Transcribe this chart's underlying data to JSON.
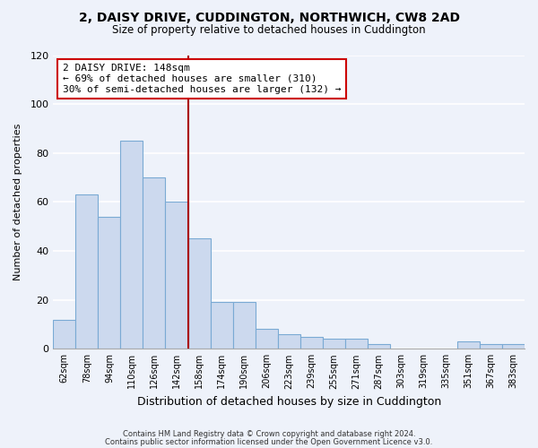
{
  "title": "2, DAISY DRIVE, CUDDINGTON, NORTHWICH, CW8 2AD",
  "subtitle": "Size of property relative to detached houses in Cuddington",
  "xlabel": "Distribution of detached houses by size in Cuddington",
  "ylabel": "Number of detached properties",
  "bar_labels": [
    "62sqm",
    "78sqm",
    "94sqm",
    "110sqm",
    "126sqm",
    "142sqm",
    "158sqm",
    "174sqm",
    "190sqm",
    "206sqm",
    "223sqm",
    "239sqm",
    "255sqm",
    "271sqm",
    "287sqm",
    "303sqm",
    "319sqm",
    "335sqm",
    "351sqm",
    "367sqm",
    "383sqm"
  ],
  "bar_values": [
    12,
    63,
    54,
    85,
    70,
    60,
    45,
    19,
    19,
    8,
    6,
    5,
    4,
    4,
    2,
    0,
    0,
    0,
    3,
    2,
    2
  ],
  "bar_color": "#ccd9ee",
  "bar_edge_color": "#7aaad4",
  "vline_x": 5.5,
  "vline_color": "#aa0000",
  "annotation_title": "2 DAISY DRIVE: 148sqm",
  "annotation_line1": "← 69% of detached houses are smaller (310)",
  "annotation_line2": "30% of semi-detached houses are larger (132) →",
  "annotation_box_facecolor": "#ffffff",
  "annotation_box_edgecolor": "#cc0000",
  "ylim": [
    0,
    120
  ],
  "yticks": [
    0,
    20,
    40,
    60,
    80,
    100,
    120
  ],
  "footer1": "Contains HM Land Registry data © Crown copyright and database right 2024.",
  "footer2": "Contains public sector information licensed under the Open Government Licence v3.0.",
  "background_color": "#eef2fa",
  "grid_color": "#d0d8e8",
  "title_fontsize": 10,
  "subtitle_fontsize": 8.5,
  "xlabel_fontsize": 9,
  "ylabel_fontsize": 8
}
